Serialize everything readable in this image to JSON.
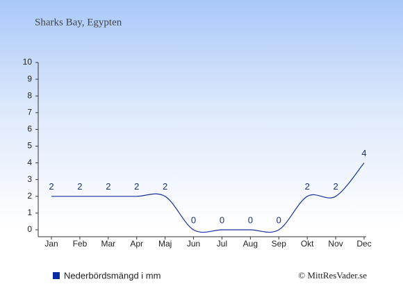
{
  "chart_data": {
    "type": "line",
    "title": "Sharks Bay, Egypten",
    "categories": [
      "Jan",
      "Feb",
      "Mar",
      "Apr",
      "Maj",
      "Jun",
      "Jul",
      "Aug",
      "Sep",
      "Okt",
      "Nov",
      "Dec"
    ],
    "series": [
      {
        "name": "Nederbördsmängd i mm",
        "color": "#1a2f9e",
        "values": [
          2,
          2,
          2,
          2,
          2,
          0,
          0,
          0,
          0,
          2,
          2,
          4
        ]
      }
    ],
    "ylim": [
      0,
      10
    ],
    "yticks": [
      0,
      1,
      2,
      3,
      4,
      5,
      6,
      7,
      8,
      9,
      10
    ],
    "grid": false,
    "source": "© MittResVader.se"
  }
}
